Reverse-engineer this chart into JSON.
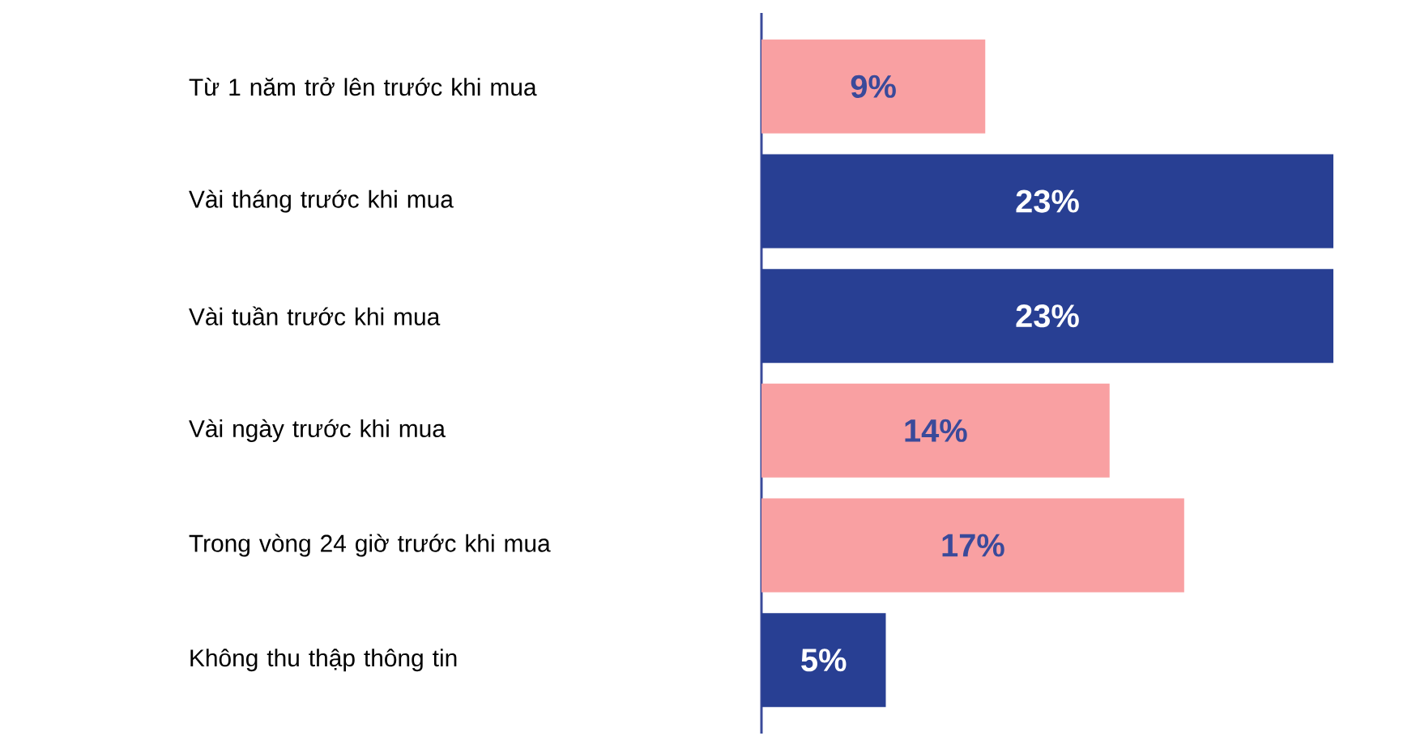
{
  "chart_data": {
    "type": "bar",
    "orientation": "horizontal",
    "categories": [
      "Từ 1 năm trở lên trước khi mua",
      "Vài tháng trước khi mua",
      "Vài tuần trước khi mua",
      "Vài ngày trước khi mua",
      "Trong vòng 24 giờ trước khi mua",
      "Không thu thập thông tin"
    ],
    "values": [
      9,
      23,
      23,
      14,
      17,
      5
    ],
    "value_labels": [
      "9%",
      "23%",
      "23%",
      "14%",
      "17%",
      "5%"
    ],
    "colors": [
      "#f9a0a2",
      "#283f93",
      "#283f93",
      "#f9a0a2",
      "#f9a0a2",
      "#283f93"
    ]
  }
}
